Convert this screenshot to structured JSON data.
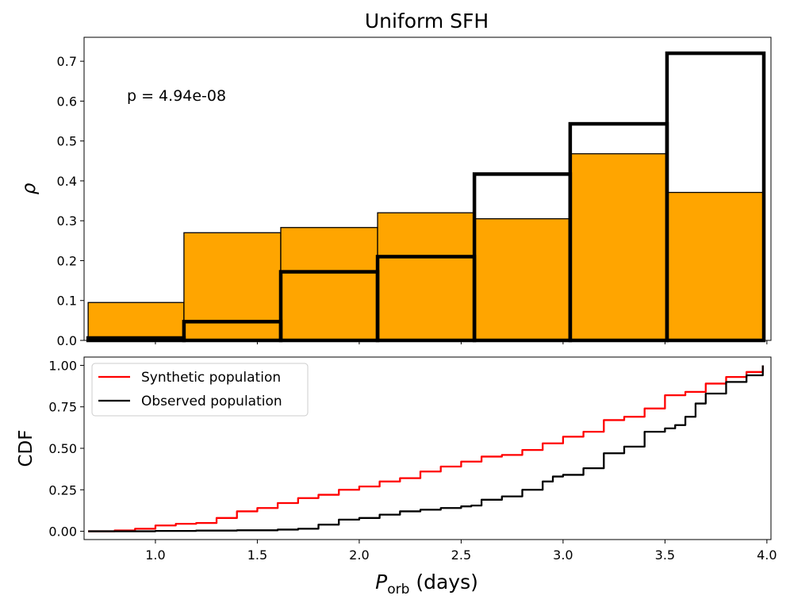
{
  "chart_data": [
    {
      "type": "bar",
      "title": "Uniform SFH",
      "ylabel": "ρ",
      "xlabel": "",
      "xlim": [
        0.65,
        4.02
      ],
      "ylim": [
        0,
        0.76
      ],
      "annotation": "p = 4.94e-08",
      "bin_edges": [
        0.67,
        1.14,
        1.615,
        2.09,
        2.565,
        3.035,
        3.51,
        3.985
      ],
      "yticks": [
        "0.0",
        "0.1",
        "0.2",
        "0.3",
        "0.4",
        "0.5",
        "0.6",
        "0.7"
      ],
      "series": [
        {
          "name": "Synthetic population",
          "style": "filled",
          "color": "#ffa500",
          "values": [
            0.095,
            0.27,
            0.283,
            0.32,
            0.305,
            0.468,
            0.371
          ]
        },
        {
          "name": "Observed population",
          "style": "step-outline",
          "color": "#000000",
          "values": [
            0.006,
            0.047,
            0.172,
            0.21,
            0.417,
            0.543,
            0.72
          ]
        }
      ]
    },
    {
      "type": "line",
      "ylabel": "CDF",
      "xlabel": "P_orb (days)",
      "xlim": [
        0.65,
        4.02
      ],
      "ylim": [
        -0.05,
        1.05
      ],
      "xticks": [
        "1.0",
        "1.5",
        "2.0",
        "2.5",
        "3.0",
        "3.5",
        "4.0"
      ],
      "yticks": [
        "0.00",
        "0.25",
        "0.50",
        "0.75",
        "1.00"
      ],
      "legend": "upper-left",
      "series": [
        {
          "name": "Synthetic population",
          "color": "#ff0000",
          "x": [
            0.67,
            0.8,
            0.9,
            1.0,
            1.1,
            1.2,
            1.3,
            1.4,
            1.5,
            1.6,
            1.7,
            1.8,
            1.9,
            2.0,
            2.1,
            2.2,
            2.3,
            2.4,
            2.5,
            2.6,
            2.7,
            2.8,
            2.9,
            3.0,
            3.1,
            3.2,
            3.3,
            3.4,
            3.5,
            3.6,
            3.7,
            3.8,
            3.9,
            3.98
          ],
          "y": [
            0.0,
            0.005,
            0.015,
            0.035,
            0.045,
            0.05,
            0.08,
            0.12,
            0.14,
            0.17,
            0.2,
            0.22,
            0.25,
            0.27,
            0.3,
            0.32,
            0.36,
            0.39,
            0.42,
            0.45,
            0.46,
            0.49,
            0.53,
            0.57,
            0.6,
            0.67,
            0.69,
            0.74,
            0.82,
            0.84,
            0.89,
            0.93,
            0.96,
            1.0
          ]
        },
        {
          "name": "Observed population",
          "color": "#000000",
          "x": [
            0.67,
            1.0,
            1.2,
            1.4,
            1.6,
            1.7,
            1.8,
            1.9,
            2.0,
            2.1,
            2.2,
            2.3,
            2.4,
            2.5,
            2.55,
            2.6,
            2.7,
            2.8,
            2.9,
            2.95,
            3.0,
            3.1,
            3.2,
            3.3,
            3.4,
            3.5,
            3.55,
            3.6,
            3.65,
            3.7,
            3.8,
            3.9,
            3.98
          ],
          "y": [
            0.0,
            0.002,
            0.004,
            0.006,
            0.01,
            0.015,
            0.04,
            0.07,
            0.08,
            0.1,
            0.12,
            0.13,
            0.14,
            0.15,
            0.155,
            0.19,
            0.21,
            0.25,
            0.3,
            0.33,
            0.34,
            0.38,
            0.47,
            0.51,
            0.6,
            0.62,
            0.64,
            0.69,
            0.77,
            0.83,
            0.9,
            0.94,
            1.0
          ]
        }
      ]
    }
  ]
}
